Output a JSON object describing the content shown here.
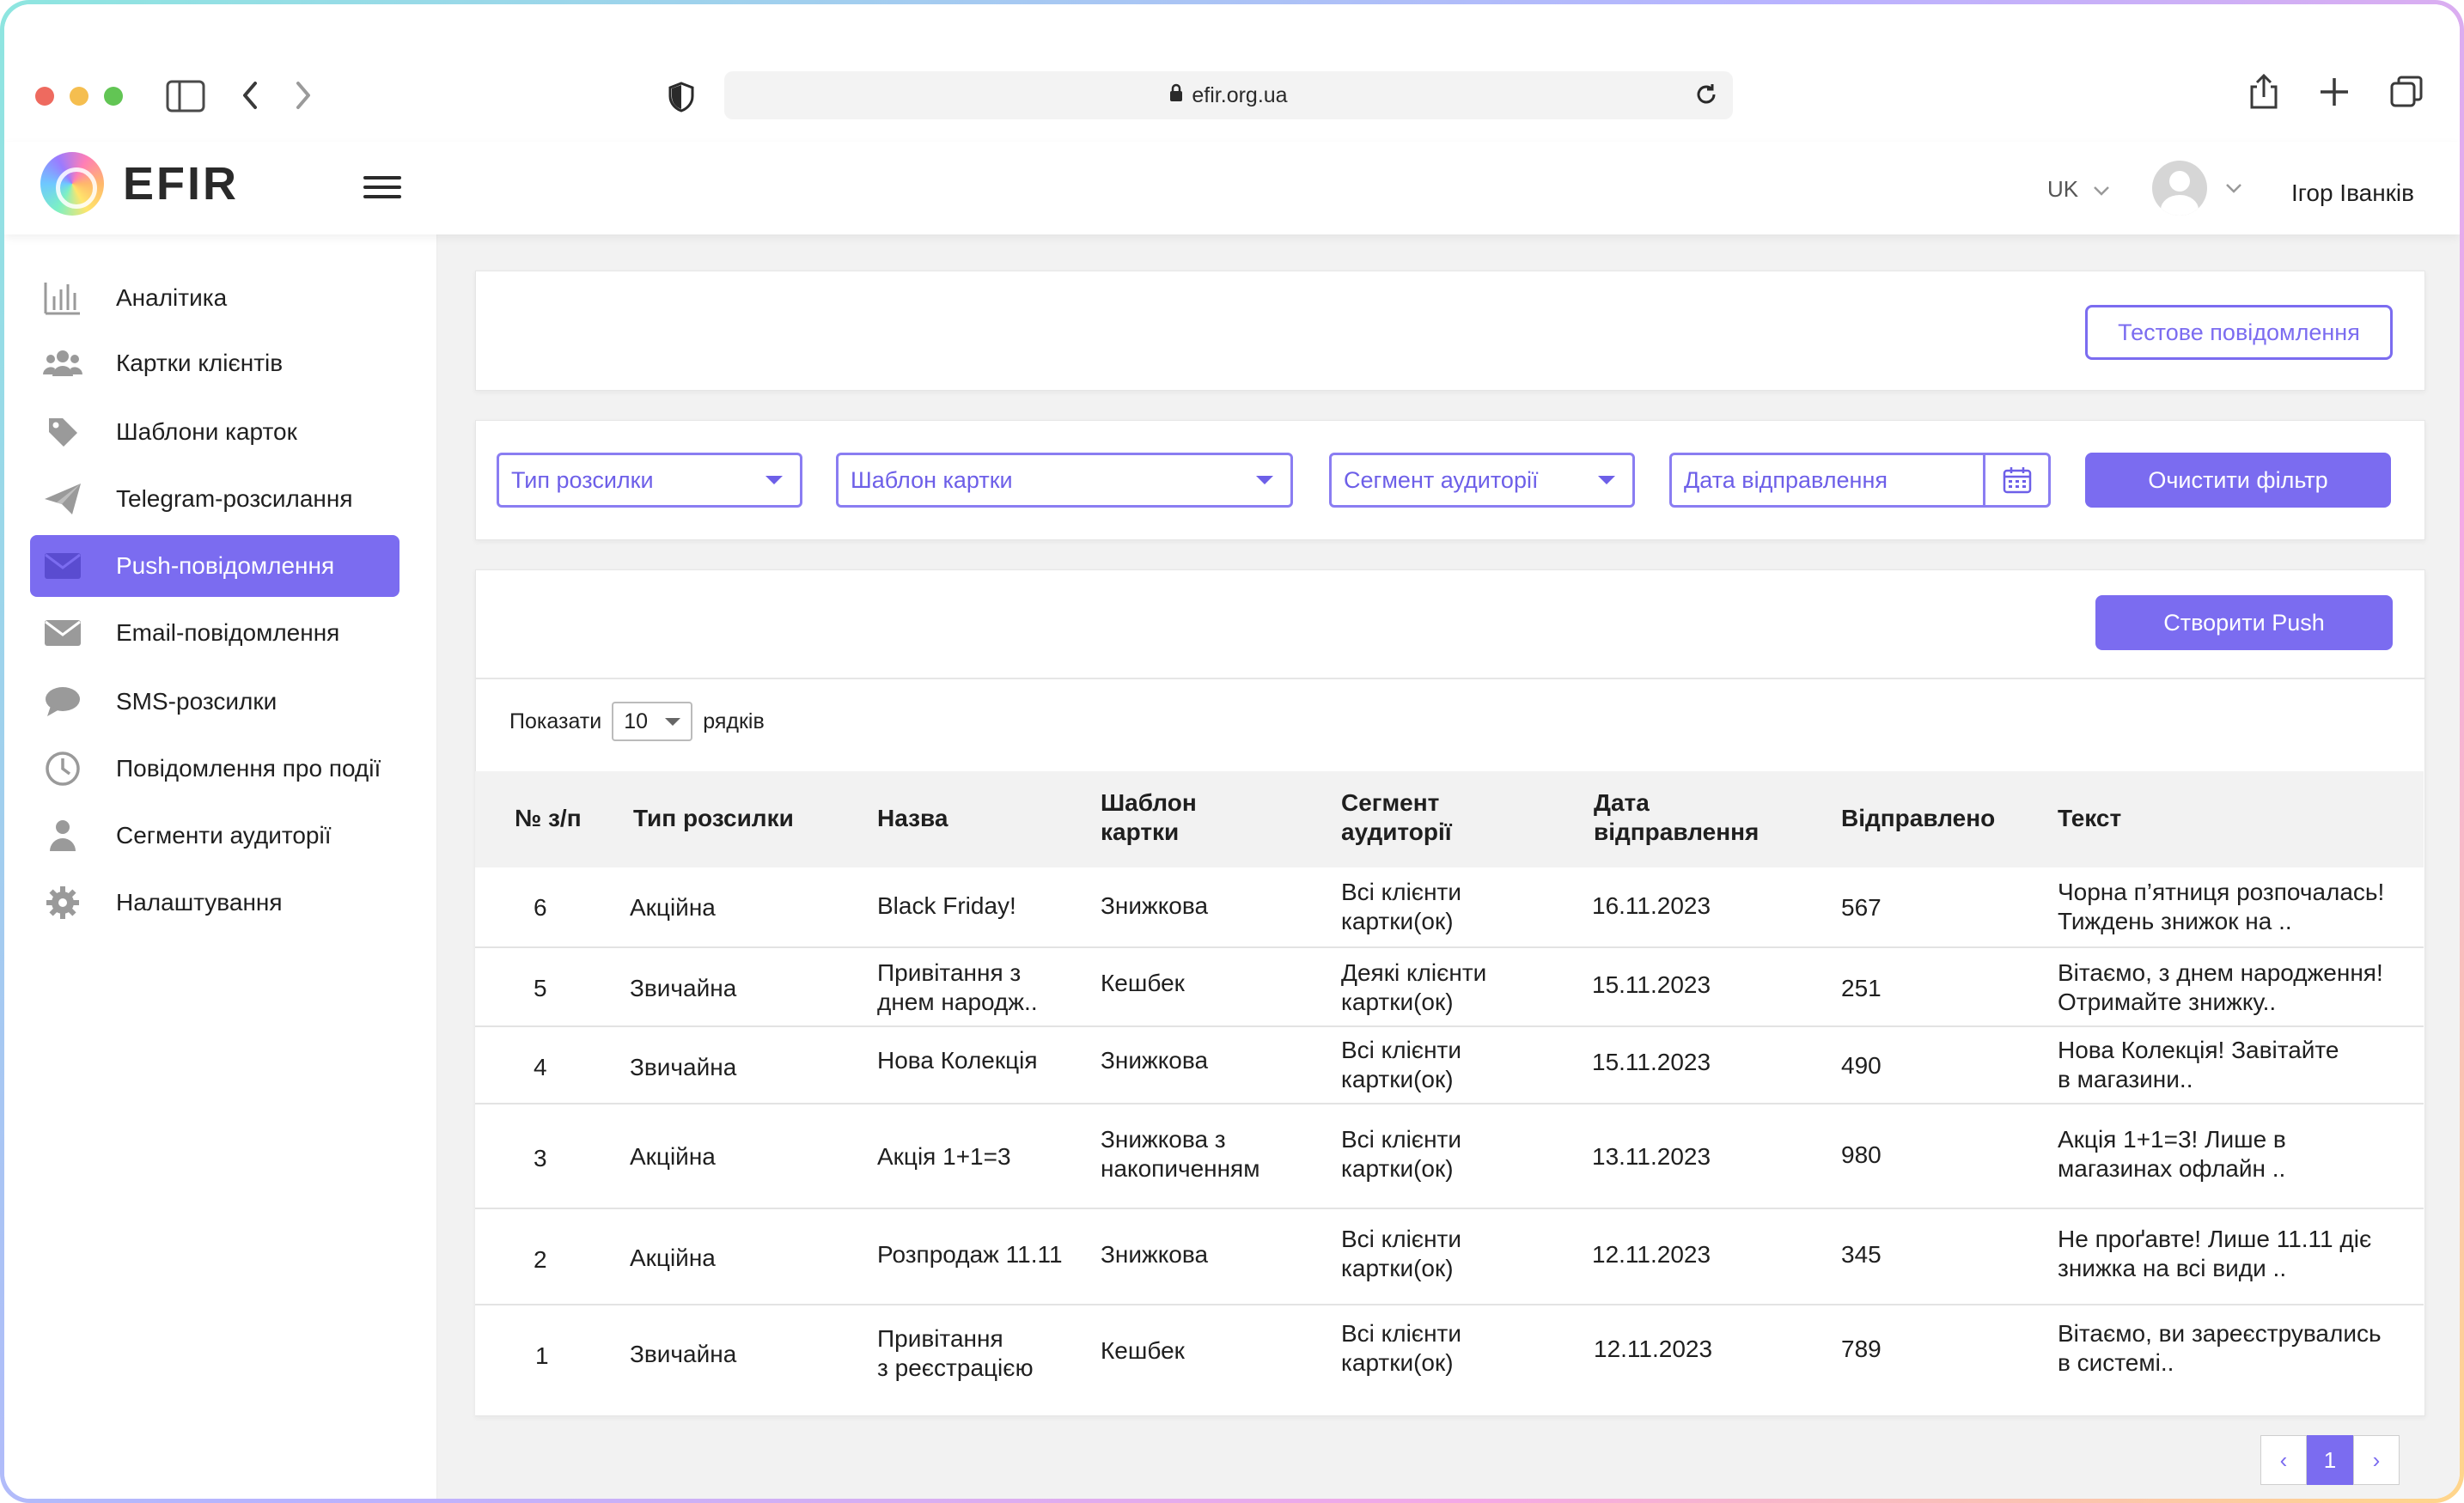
{
  "browser": {
    "url": "efir.org.ua",
    "traffic_colors": [
      "#ee6a5f",
      "#f5be4f",
      "#62c554"
    ]
  },
  "header": {
    "logo_text": "EFIR",
    "language": "UK",
    "user_name": "Ігор Іванків"
  },
  "sidebar": {
    "items": [
      {
        "label": "Аналітика",
        "icon": "bar-chart-icon"
      },
      {
        "label": "Картки клієнтів",
        "icon": "users-icon"
      },
      {
        "label": "Шаблони карток",
        "icon": "tag-icon"
      },
      {
        "label": "Telegram-розсилання",
        "icon": "paper-plane-icon"
      },
      {
        "label": "Push-повідомлення",
        "icon": "envelope-icon",
        "active": true
      },
      {
        "label": "Email-повідомлення",
        "icon": "envelope-icon"
      },
      {
        "label": "SMS-розсилки",
        "icon": "chat-bubble-icon"
      },
      {
        "label": "Повідомлення про події",
        "icon": "clock-icon"
      },
      {
        "label": "Сегменти аудиторії",
        "icon": "user-icon"
      },
      {
        "label": "Налаштування",
        "icon": "gear-icon"
      }
    ]
  },
  "top_card": {
    "test_button": "Тестове повідомлення"
  },
  "filters": {
    "type": "Тип розсилки",
    "template": "Шаблон картки",
    "segment": "Сегмент аудиторії",
    "date": "Дата відправлення",
    "clear_button": "Очистити фільтр"
  },
  "list": {
    "create_button": "Створити Push",
    "show_label": "Показати",
    "rows_value": "10",
    "rows_label": "рядків",
    "columns": {
      "num": "№ з/п",
      "type": "Тип розсилки",
      "name": "Назва",
      "template_1": "Шаблон",
      "template_2": "картки",
      "segment_1": "Сегмент",
      "segment_2": "аудиторії",
      "date_1": "Дата",
      "date_2": "відправлення",
      "sent": "Відправлено",
      "text": "Текст"
    },
    "rows": [
      {
        "num": "6",
        "type": "Акційна",
        "name_1": "Black Friday!",
        "name_2": "",
        "template_1": "Знижкова",
        "template_2": "",
        "segment_1": "Всі клієнти",
        "segment_2": "картки(ок)",
        "date": "16.11.2023",
        "sent": "567",
        "text_1": "Чорна п’ятниця розпочалась!",
        "text_2": "Тиждень знижок на .."
      },
      {
        "num": "5",
        "type": "Звичайна",
        "name_1": "Привітання з",
        "name_2": "днем народж..",
        "template_1": "Кешбек",
        "template_2": "",
        "segment_1": "Деякі клієнти",
        "segment_2": "картки(ок)",
        "date": "15.11.2023",
        "sent": "251",
        "text_1": "Вітаємо, з днем народження!",
        "text_2": "Отримайте знижку.."
      },
      {
        "num": "4",
        "type": "Звичайна",
        "name_1": "Нова Колекція",
        "name_2": "",
        "template_1": "Знижкова",
        "template_2": "",
        "segment_1": "Всі клієнти",
        "segment_2": "картки(ок)",
        "date": "15.11.2023",
        "sent": "490",
        "text_1": "Нова Колекція! Завітайте",
        "text_2": "в магазини.."
      },
      {
        "num": "3",
        "type": "Акційна",
        "name_1": "Акція 1+1=3",
        "name_2": "",
        "template_1": "Знижкова з",
        "template_2": "накопиченням",
        "segment_1": "Всі клієнти",
        "segment_2": "картки(ок)",
        "date": "13.11.2023",
        "sent": "980",
        "text_1": "Акція 1+1=3! Лише в",
        "text_2": "магазинах офлайн .."
      },
      {
        "num": "2",
        "type": "Акційна",
        "name_1": "Розпродаж 11.11",
        "name_2": "",
        "template_1": "Знижкова",
        "template_2": "",
        "segment_1": "Всі клієнти",
        "segment_2": "картки(ок)",
        "date": "12.11.2023",
        "sent": "345",
        "text_1": "Не проґавте! Лише 11.11 діє",
        "text_2": "знижка на всі види .."
      },
      {
        "num": "1",
        "type": "Звичайна",
        "name_1": "Привітання",
        "name_2": "з реєстрацією",
        "template_1": "Кешбек",
        "template_2": "",
        "segment_1": "Всі клієнти",
        "segment_2": "картки(ок)",
        "date": "12.11.2023",
        "sent": "789",
        "text_1": "Вітаємо, ви зареєструвались",
        "text_2": "в системі.."
      }
    ]
  },
  "pagination": {
    "current": "1",
    "prev": "‹",
    "next": "›"
  },
  "colors": {
    "accent": "#7b6cf0"
  }
}
